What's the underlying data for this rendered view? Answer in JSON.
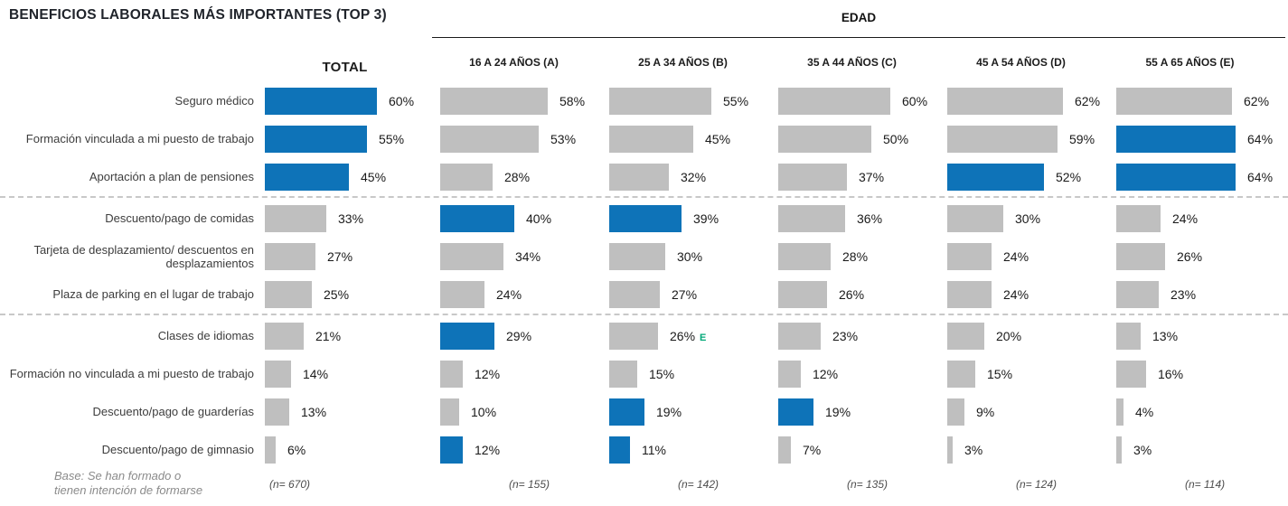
{
  "title": "BENEFICIOS LABORALES MÁS IMPORTANTES (TOP 3)",
  "group_header": "EDAD",
  "footnote": "Base: Se han formado o tienen intención de formarse",
  "colors": {
    "highlight_bar": "#0e73b8",
    "default_bar": "#bfbfbf",
    "significance_letter": "#00a878"
  },
  "chart_data": {
    "type": "bar",
    "orientation": "horizontal",
    "unit": "%",
    "value_label_format": "{value}%",
    "legend": "none",
    "value_range": [
      0,
      64
    ],
    "categories": [
      "Seguro médico",
      "Formación vinculada a mi puesto de trabajo",
      "Aportación a plan de pensiones",
      "Descuento/pago de comidas",
      "Tarjeta de desplazamiento/ descuentos en desplazamientos",
      "Plaza de parking en el lugar de trabajo",
      "Clases de idiomas",
      "Formación no vinculada a mi puesto de trabajo",
      "Descuento/pago de guarderías",
      "Descuento/pago de gimnasio"
    ],
    "separator_after_indices": [
      2,
      5
    ],
    "series": [
      {
        "name": "TOTAL",
        "base": "(n= 670)",
        "values": [
          60,
          55,
          45,
          33,
          27,
          25,
          21,
          14,
          13,
          6
        ],
        "highlighted": [
          true,
          true,
          true,
          false,
          false,
          false,
          false,
          false,
          false,
          false
        ]
      },
      {
        "name": "16 A 24 AÑOS (A)",
        "base": "(n= 155)",
        "values": [
          58,
          53,
          28,
          40,
          34,
          24,
          29,
          12,
          10,
          12
        ],
        "highlighted": [
          false,
          false,
          false,
          true,
          false,
          false,
          true,
          false,
          false,
          true
        ]
      },
      {
        "name": "25 A 34 AÑOS (B)",
        "base": "(n= 142)",
        "values": [
          55,
          45,
          32,
          39,
          30,
          27,
          26,
          15,
          19,
          11
        ],
        "highlighted": [
          false,
          false,
          false,
          true,
          false,
          false,
          false,
          false,
          true,
          true
        ],
        "annotations": {
          "6": "E"
        }
      },
      {
        "name": "35 A 44 AÑOS (C)",
        "base": "(n= 135)",
        "values": [
          60,
          50,
          37,
          36,
          28,
          26,
          23,
          12,
          19,
          7
        ],
        "highlighted": [
          false,
          false,
          false,
          false,
          false,
          false,
          false,
          false,
          true,
          false
        ]
      },
      {
        "name": "45 A 54 AÑOS (D)",
        "base": "(n= 124)",
        "values": [
          62,
          59,
          52,
          30,
          24,
          24,
          20,
          15,
          9,
          3
        ],
        "highlighted": [
          false,
          false,
          true,
          false,
          false,
          false,
          false,
          false,
          false,
          false
        ]
      },
      {
        "name": "55 A 65 AÑOS (E)",
        "base": "(n= 114)",
        "values": [
          62,
          64,
          64,
          24,
          26,
          23,
          13,
          16,
          4,
          3
        ],
        "highlighted": [
          false,
          true,
          true,
          false,
          false,
          false,
          false,
          false,
          false,
          false
        ]
      }
    ]
  }
}
